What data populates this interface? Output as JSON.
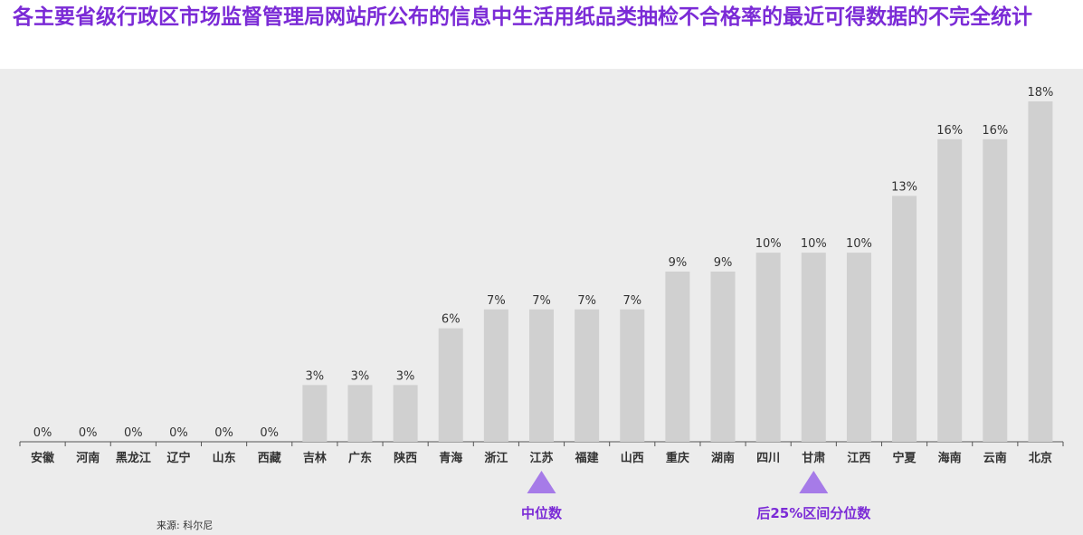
{
  "title": "各主要省级行政区市场监督管理局网站所公布的信息中生活用纸品类抽检不合格率的最近可得数据的不完全统计",
  "source": "来源: 科尔尼",
  "colors": {
    "title": "#7b2bd6",
    "bar": "#d0d0d0",
    "marker": "#a67be8",
    "marker_text": "#7b2bd6",
    "background": "#ececec"
  },
  "markers": [
    {
      "label": "中位数",
      "category": "江苏"
    },
    {
      "label": "后25%区间分位数",
      "category": "甘肃"
    }
  ],
  "chart_data": {
    "type": "bar",
    "title": "各主要省级行政区市场监督管理局网站所公布的信息中生活用纸品类抽检不合格率的最近可得数据的不完全统计",
    "xlabel": "",
    "ylabel": "",
    "grid": false,
    "categories": [
      "安徽",
      "河南",
      "黑龙江",
      "辽宁",
      "山东",
      "西藏",
      "吉林",
      "广东",
      "陕西",
      "青海",
      "浙江",
      "江苏",
      "福建",
      "山西",
      "重庆",
      "湖南",
      "四川",
      "甘肃",
      "江西",
      "宁夏",
      "海南",
      "云南",
      "北京"
    ],
    "values": [
      0,
      0,
      0,
      0,
      0,
      0,
      3,
      3,
      3,
      6,
      7,
      7,
      7,
      7,
      9,
      9,
      10,
      10,
      10,
      13,
      16,
      16,
      18
    ],
    "data_labels": [
      "0%",
      "0%",
      "0%",
      "0%",
      "0%",
      "0%",
      "3%",
      "3%",
      "3%",
      "6%",
      "7%",
      "7%",
      "7%",
      "7%",
      "9%",
      "9%",
      "10%",
      "10%",
      "10%",
      "13%",
      "16%",
      "16%",
      "18%"
    ],
    "ylim": [
      0,
      18
    ]
  }
}
